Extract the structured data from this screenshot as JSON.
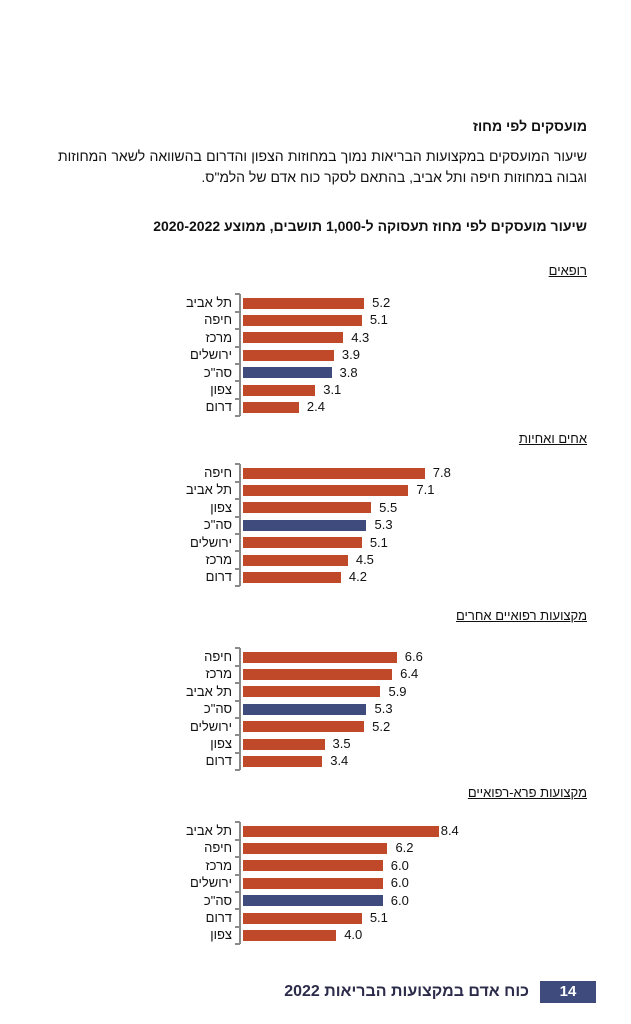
{
  "heading": "מועסקים לפי מחוז",
  "paragraph": "שיעור המועסקים במקצועות הבריאות נמוך במחוזות הצפון והדרום בהשוואה לשאר המחוזות וגבוה במחוזות חיפה ותל אביב, בהתאם לסקר כוח אדם של הלמ\"ס.",
  "chart_title": "שיעור מועסקים לפי מחוז תעסוקה ל-1,000 תושבים, ממוצע 2020-2022",
  "colors": {
    "district": "#c0492a",
    "total": "#3f4b7d"
  },
  "chart_data": [
    {
      "type": "bar",
      "orientation": "horizontal",
      "title": "רופאים",
      "categories": [
        "תל אביב",
        "חיפה",
        "מרכז",
        "ירושלים",
        "סה\"כ",
        "צפון",
        "דרום"
      ],
      "values": [
        5.2,
        5.1,
        4.3,
        3.9,
        3.8,
        3.1,
        2.4
      ],
      "highlight": "סה\"כ"
    },
    {
      "type": "bar",
      "orientation": "horizontal",
      "title": "אחים ואחיות",
      "categories": [
        "חיפה",
        "תל אביב",
        "צפון",
        "סה\"כ",
        "ירושלים",
        "מרכז",
        "דרום"
      ],
      "values": [
        7.8,
        7.1,
        5.5,
        5.3,
        5.1,
        4.5,
        4.2
      ],
      "highlight": "סה\"כ"
    },
    {
      "type": "bar",
      "orientation": "horizontal",
      "title": "מקצועות רפואיים אחרים",
      "categories": [
        "חיפה",
        "מרכז",
        "תל אביב",
        "סה\"כ",
        "ירושלים",
        "צפון",
        "דרום"
      ],
      "values": [
        6.6,
        6.4,
        5.9,
        5.3,
        5.2,
        3.5,
        3.4
      ],
      "highlight": "סה\"כ"
    },
    {
      "type": "bar",
      "orientation": "horizontal",
      "title": "מקצועות פרא-רפואיים",
      "categories": [
        "תל אביב",
        "חיפה",
        "מרכז",
        "ירושלים",
        "סה\"כ",
        "דרום",
        "צפון"
      ],
      "values": [
        8.4,
        6.2,
        6.0,
        6.0,
        6.0,
        5.1,
        4.0
      ],
      "highlight": "סה\"כ"
    }
  ],
  "footer": {
    "page_number": "14",
    "title": "כוח אדם במקצועות הבריאות 2022"
  }
}
